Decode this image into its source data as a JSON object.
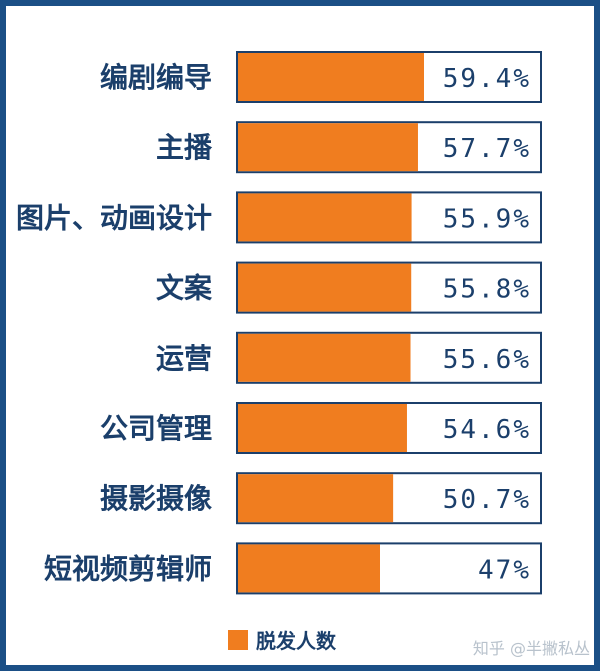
{
  "chart_data": {
    "type": "bar",
    "orientation": "horizontal",
    "categories": [
      "编剧编导",
      "主播",
      "图片、动画设计",
      "文案",
      "运营",
      "公司管理",
      "摄影摄像",
      "短视频剪辑师"
    ],
    "series": [
      {
        "name": "脱发人数",
        "values": [
          59.4,
          57.7,
          55.9,
          55.8,
          55.6,
          54.6,
          50.7,
          47
        ],
        "labels": [
          "59.4%",
          "57.7%",
          "55.9%",
          "55.8%",
          "55.6%",
          "54.6%",
          "50.7%",
          "47%"
        ]
      }
    ],
    "title": "",
    "xlabel": "",
    "ylabel": "",
    "xlim": [
      0,
      100
    ],
    "grid": false,
    "legend": "bottom-center"
  },
  "colors": {
    "bar": "#f07d1f",
    "bar_outline": "#1b3f6b",
    "frame": "#1b4f86",
    "text": "#1b3f6b"
  },
  "watermark": "知乎 @半撇私丛"
}
